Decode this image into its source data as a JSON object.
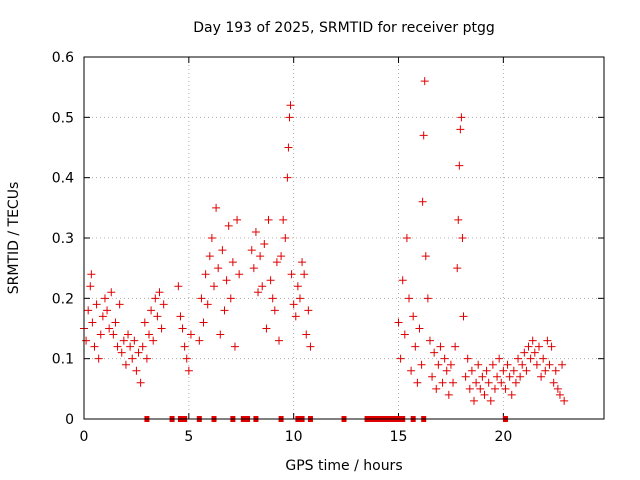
{
  "chart_data": {
    "type": "scatter",
    "title": "Day 193 of 2025, SRMTID for receiver ptgg",
    "xlabel": "GPS time / hours",
    "ylabel": "SRMTID / TECUs",
    "xlim": [
      0,
      24.8
    ],
    "ylim": [
      0,
      0.6
    ],
    "grid": true,
    "marker": "plus",
    "color": "#e00000",
    "x_ticks": [
      0,
      5,
      10,
      15,
      20
    ],
    "x_tick_labels": [
      "0",
      "5",
      "10",
      "15",
      "20"
    ],
    "y_ticks": [
      0,
      0.1,
      0.2,
      0.3,
      0.4,
      0.5,
      0.6
    ],
    "y_tick_labels": [
      "0",
      "0.1",
      "0.2",
      "0.3",
      "0.4",
      "0.5",
      "0.6"
    ],
    "series": [
      {
        "name": "SRMTID",
        "points": [
          [
            0.0,
            0.15
          ],
          [
            0.1,
            0.13
          ],
          [
            0.2,
            0.18
          ],
          [
            0.3,
            0.22
          ],
          [
            0.35,
            0.24
          ],
          [
            0.4,
            0.16
          ],
          [
            0.5,
            0.12
          ],
          [
            0.6,
            0.19
          ],
          [
            0.7,
            0.1
          ],
          [
            0.8,
            0.14
          ],
          [
            0.9,
            0.17
          ],
          [
            1.0,
            0.2
          ],
          [
            1.1,
            0.18
          ],
          [
            1.2,
            0.15
          ],
          [
            1.3,
            0.21
          ],
          [
            1.4,
            0.14
          ],
          [
            1.5,
            0.16
          ],
          [
            1.6,
            0.12
          ],
          [
            1.7,
            0.19
          ],
          [
            1.8,
            0.11
          ],
          [
            1.9,
            0.13
          ],
          [
            2.0,
            0.09
          ],
          [
            2.1,
            0.14
          ],
          [
            2.2,
            0.12
          ],
          [
            2.3,
            0.1
          ],
          [
            2.4,
            0.13
          ],
          [
            2.5,
            0.08
          ],
          [
            2.6,
            0.11
          ],
          [
            2.7,
            0.06
          ],
          [
            2.8,
            0.12
          ],
          [
            2.9,
            0.16
          ],
          [
            3.0,
            0.1
          ],
          [
            3.1,
            0.14
          ],
          [
            3.2,
            0.18
          ],
          [
            3.3,
            0.13
          ],
          [
            3.4,
            0.2
          ],
          [
            3.5,
            0.17
          ],
          [
            3.6,
            0.21
          ],
          [
            3.7,
            0.15
          ],
          [
            3.8,
            0.19
          ],
          [
            4.5,
            0.22
          ],
          [
            4.6,
            0.17
          ],
          [
            4.7,
            0.15
          ],
          [
            4.8,
            0.12
          ],
          [
            4.9,
            0.1
          ],
          [
            5.0,
            0.08
          ],
          [
            5.1,
            0.14
          ],
          [
            5.5,
            0.13
          ],
          [
            5.6,
            0.2
          ],
          [
            5.7,
            0.16
          ],
          [
            5.8,
            0.24
          ],
          [
            5.9,
            0.19
          ],
          [
            6.0,
            0.27
          ],
          [
            6.1,
            0.3
          ],
          [
            6.2,
            0.22
          ],
          [
            6.3,
            0.35
          ],
          [
            6.4,
            0.25
          ],
          [
            6.5,
            0.14
          ],
          [
            6.6,
            0.28
          ],
          [
            6.7,
            0.18
          ],
          [
            6.8,
            0.23
          ],
          [
            6.9,
            0.32
          ],
          [
            7.0,
            0.2
          ],
          [
            7.1,
            0.26
          ],
          [
            7.2,
            0.12
          ],
          [
            7.3,
            0.33
          ],
          [
            7.4,
            0.24
          ],
          [
            8.0,
            0.28
          ],
          [
            8.1,
            0.25
          ],
          [
            8.2,
            0.31
          ],
          [
            8.3,
            0.21
          ],
          [
            8.4,
            0.27
          ],
          [
            8.5,
            0.22
          ],
          [
            8.6,
            0.29
          ],
          [
            8.7,
            0.15
          ],
          [
            8.8,
            0.33
          ],
          [
            8.9,
            0.23
          ],
          [
            9.0,
            0.2
          ],
          [
            9.1,
            0.18
          ],
          [
            9.2,
            0.26
          ],
          [
            9.3,
            0.13
          ],
          [
            9.4,
            0.27
          ],
          [
            9.5,
            0.33
          ],
          [
            9.6,
            0.3
          ],
          [
            9.7,
            0.4
          ],
          [
            9.75,
            0.45
          ],
          [
            9.8,
            0.5
          ],
          [
            9.85,
            0.52
          ],
          [
            9.9,
            0.24
          ],
          [
            10.0,
            0.19
          ],
          [
            10.1,
            0.17
          ],
          [
            10.2,
            0.22
          ],
          [
            10.3,
            0.2
          ],
          [
            10.4,
            0.26
          ],
          [
            10.5,
            0.24
          ],
          [
            10.6,
            0.14
          ],
          [
            10.7,
            0.18
          ],
          [
            10.8,
            0.12
          ],
          [
            15.0,
            0.16
          ],
          [
            15.1,
            0.1
          ],
          [
            15.2,
            0.23
          ],
          [
            15.3,
            0.14
          ],
          [
            15.4,
            0.3
          ],
          [
            15.5,
            0.2
          ],
          [
            15.6,
            0.08
          ],
          [
            15.7,
            0.17
          ],
          [
            15.8,
            0.12
          ],
          [
            15.9,
            0.06
          ],
          [
            16.0,
            0.15
          ],
          [
            16.1,
            0.09
          ],
          [
            16.15,
            0.36
          ],
          [
            16.2,
            0.47
          ],
          [
            16.25,
            0.56
          ],
          [
            16.3,
            0.27
          ],
          [
            16.4,
            0.2
          ],
          [
            16.5,
            0.13
          ],
          [
            16.6,
            0.07
          ],
          [
            16.7,
            0.11
          ],
          [
            16.8,
            0.05
          ],
          [
            16.9,
            0.09
          ],
          [
            17.0,
            0.12
          ],
          [
            17.1,
            0.06
          ],
          [
            17.2,
            0.1
          ],
          [
            17.3,
            0.08
          ],
          [
            17.4,
            0.04
          ],
          [
            17.5,
            0.09
          ],
          [
            17.6,
            0.06
          ],
          [
            17.7,
            0.12
          ],
          [
            17.8,
            0.25
          ],
          [
            17.85,
            0.33
          ],
          [
            17.9,
            0.42
          ],
          [
            17.95,
            0.48
          ],
          [
            18.0,
            0.5
          ],
          [
            18.05,
            0.3
          ],
          [
            18.1,
            0.17
          ],
          [
            18.2,
            0.07
          ],
          [
            18.3,
            0.1
          ],
          [
            18.4,
            0.05
          ],
          [
            18.5,
            0.08
          ],
          [
            18.6,
            0.03
          ],
          [
            18.7,
            0.06
          ],
          [
            18.8,
            0.09
          ],
          [
            18.9,
            0.05
          ],
          [
            19.0,
            0.07
          ],
          [
            19.1,
            0.04
          ],
          [
            19.2,
            0.08
          ],
          [
            19.3,
            0.06
          ],
          [
            19.4,
            0.03
          ],
          [
            19.5,
            0.09
          ],
          [
            19.6,
            0.05
          ],
          [
            19.7,
            0.07
          ],
          [
            19.8,
            0.1
          ],
          [
            19.9,
            0.06
          ],
          [
            20.0,
            0.08
          ],
          [
            20.1,
            0.05
          ],
          [
            20.2,
            0.09
          ],
          [
            20.3,
            0.07
          ],
          [
            20.4,
            0.04
          ],
          [
            20.5,
            0.08
          ],
          [
            20.6,
            0.06
          ],
          [
            20.7,
            0.1
          ],
          [
            20.8,
            0.07
          ],
          [
            20.9,
            0.09
          ],
          [
            21.0,
            0.11
          ],
          [
            21.1,
            0.08
          ],
          [
            21.2,
            0.12
          ],
          [
            21.3,
            0.1
          ],
          [
            21.4,
            0.13
          ],
          [
            21.5,
            0.11
          ],
          [
            21.6,
            0.09
          ],
          [
            21.7,
            0.12
          ],
          [
            21.8,
            0.07
          ],
          [
            21.9,
            0.1
          ],
          [
            22.0,
            0.08
          ],
          [
            22.1,
            0.13
          ],
          [
            22.2,
            0.09
          ],
          [
            22.3,
            0.12
          ],
          [
            22.4,
            0.06
          ],
          [
            22.5,
            0.08
          ],
          [
            22.6,
            0.05
          ],
          [
            22.7,
            0.04
          ],
          [
            22.8,
            0.09
          ],
          [
            22.9,
            0.03
          ]
        ],
        "zero_points_x": [
          3.0,
          4.2,
          4.6,
          4.8,
          5.5,
          6.2,
          7.1,
          7.6,
          7.8,
          8.2,
          9.4,
          10.2,
          10.4,
          10.8,
          12.4,
          13.5,
          13.7,
          13.9,
          14.1,
          14.3,
          14.5,
          14.6,
          14.8,
          15.0,
          15.2,
          15.7,
          16.2,
          20.1
        ]
      }
    ]
  }
}
